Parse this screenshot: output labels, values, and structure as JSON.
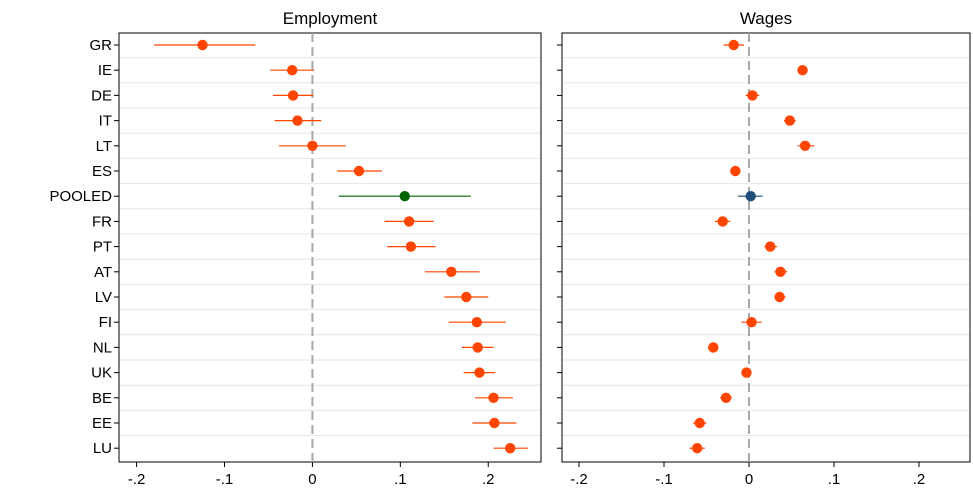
{
  "colors": {
    "country": "#ff4500",
    "pooled_employment": "#006400",
    "pooled_wages": "#1f4e79",
    "reference_line": "#a8a8a8",
    "grid": "#e6e6e6",
    "frame": "#000000"
  },
  "chart_data": [
    {
      "type": "scatter",
      "title": "Employment",
      "xlim": [
        -0.22,
        0.26
      ],
      "xticks": [
        {
          "value": -0.2,
          "label": "-.2"
        },
        {
          "value": -0.1,
          "label": "-.1"
        },
        {
          "value": 0,
          "label": "0"
        },
        {
          "value": 0.1,
          "label": ".1"
        },
        {
          "value": 0.2,
          "label": ".2"
        }
      ],
      "reference_line": 0,
      "categories": [
        "GR",
        "IE",
        "DE",
        "IT",
        "LT",
        "ES",
        "POOLED",
        "FR",
        "PT",
        "AT",
        "LV",
        "FI",
        "NL",
        "UK",
        "BE",
        "EE",
        "LU"
      ],
      "estimates": [
        -0.125,
        -0.023,
        -0.022,
        -0.017,
        0.0,
        0.053,
        0.105,
        0.11,
        0.112,
        0.158,
        0.175,
        0.187,
        0.188,
        0.19,
        0.206,
        0.207,
        0.225
      ],
      "ci_low": [
        -0.18,
        -0.048,
        -0.045,
        -0.043,
        -0.038,
        0.028,
        0.03,
        0.082,
        0.085,
        0.128,
        0.15,
        0.155,
        0.17,
        0.172,
        0.185,
        0.182,
        0.206
      ],
      "ci_high": [
        -0.065,
        0.002,
        0.001,
        0.01,
        0.038,
        0.079,
        0.18,
        0.138,
        0.14,
        0.19,
        0.2,
        0.22,
        0.206,
        0.208,
        0.228,
        0.232,
        0.245
      ],
      "pooled_index": 6
    },
    {
      "type": "scatter",
      "title": "Wages",
      "xlim": [
        -0.22,
        0.26
      ],
      "xticks": [
        {
          "value": -0.2,
          "label": "-.2"
        },
        {
          "value": -0.1,
          "label": "-.1"
        },
        {
          "value": 0,
          "label": "0"
        },
        {
          "value": 0.1,
          "label": ".1"
        },
        {
          "value": 0.2,
          "label": ".2"
        }
      ],
      "reference_line": 0,
      "categories": [
        "GR",
        "IE",
        "DE",
        "IT",
        "LT",
        "ES",
        "POOLED",
        "FR",
        "PT",
        "AT",
        "LV",
        "FI",
        "NL",
        "UK",
        "BE",
        "EE",
        "LU"
      ],
      "estimates": [
        -0.018,
        0.063,
        0.004,
        0.048,
        0.066,
        -0.016,
        0.002,
        -0.031,
        0.025,
        0.037,
        0.036,
        0.003,
        -0.042,
        -0.003,
        -0.027,
        -0.058,
        -0.061
      ],
      "ci_low": [
        -0.03,
        0.057,
        -0.004,
        0.041,
        0.057,
        -0.022,
        -0.013,
        -0.04,
        0.018,
        0.03,
        0.03,
        -0.009,
        -0.047,
        -0.008,
        -0.034,
        -0.066,
        -0.07
      ],
      "ci_high": [
        -0.006,
        0.069,
        0.012,
        0.055,
        0.077,
        -0.01,
        0.016,
        -0.022,
        0.033,
        0.045,
        0.043,
        0.015,
        -0.037,
        0.002,
        -0.02,
        -0.05,
        -0.052
      ],
      "pooled_index": 6
    }
  ]
}
